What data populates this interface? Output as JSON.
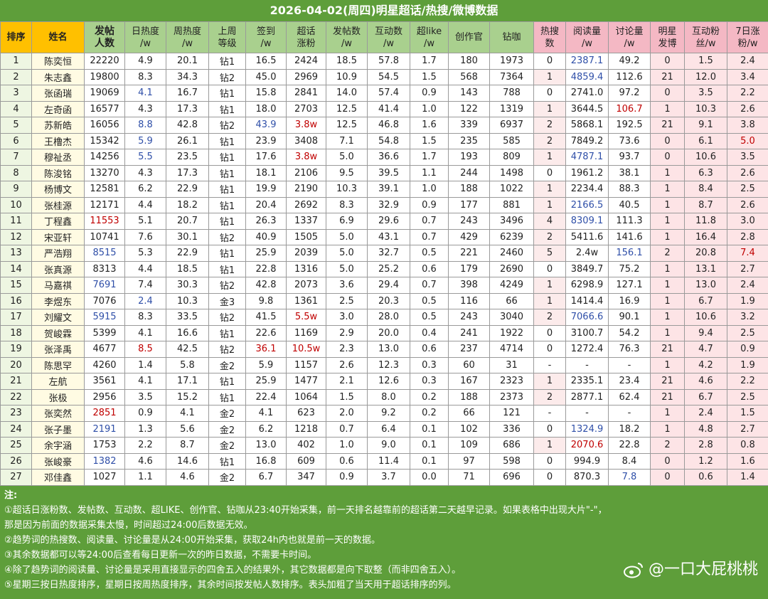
{
  "title": "2026-04-02(周四)明星超话/热搜/微博数据",
  "table": {
    "headers": [
      "排序",
      "姓名",
      "发帖\n人数",
      "日热度\n/w",
      "周热度\n/w",
      "上周\n等级",
      "签到\n/w",
      "超话\n涨粉",
      "发帖数\n/w",
      "互动数\n/w",
      "超like\n/w",
      "创作官",
      "钻咖",
      "热搜\n数",
      "阅读量\n/w",
      "讨论量\n/w",
      "明星\n发博",
      "互动粉\n丝/w",
      "7日涨\n粉/w"
    ],
    "rows": [
      [
        "1",
        "陈奕恒",
        "22220",
        "4.9",
        "20.1",
        "钻1",
        "16.5",
        "2424",
        "18.5",
        "57.8",
        "1.7",
        "180",
        "1973",
        "0",
        "2387.1",
        "49.2",
        "0",
        "1.5",
        "2.4"
      ],
      [
        "2",
        "朱志鑫",
        "19800",
        "8.3",
        "34.3",
        "钻2",
        "45.0",
        "2969",
        "10.9",
        "54.5",
        "1.5",
        "568",
        "7364",
        "1",
        "4859.4",
        "112.6",
        "21",
        "12.0",
        "3.4"
      ],
      [
        "3",
        "张函瑞",
        "19069",
        "4.1",
        "16.7",
        "钻1",
        "15.8",
        "2841",
        "14.0",
        "57.4",
        "0.9",
        "143",
        "788",
        "0",
        "2741.0",
        "97.2",
        "0",
        "3.5",
        "2.2"
      ],
      [
        "4",
        "左奇函",
        "16577",
        "4.3",
        "17.3",
        "钻1",
        "18.0",
        "2703",
        "12.5",
        "41.4",
        "1.0",
        "122",
        "1319",
        "1",
        "3644.5",
        "106.7",
        "1",
        "10.3",
        "2.6"
      ],
      [
        "5",
        "苏新皓",
        "16056",
        "8.8",
        "42.8",
        "钻2",
        "43.9",
        "3.8w",
        "12.5",
        "46.8",
        "1.6",
        "339",
        "6937",
        "2",
        "5868.1",
        "192.5",
        "21",
        "9.1",
        "3.8"
      ],
      [
        "6",
        "王橹杰",
        "15342",
        "5.9",
        "26.1",
        "钻1",
        "23.9",
        "3408",
        "7.1",
        "54.8",
        "1.5",
        "235",
        "585",
        "2",
        "7849.2",
        "73.6",
        "0",
        "6.1",
        "5.0"
      ],
      [
        "7",
        "穆祉丞",
        "14256",
        "5.5",
        "23.5",
        "钻1",
        "17.6",
        "3.8w",
        "5.0",
        "36.6",
        "1.7",
        "193",
        "809",
        "1",
        "4787.1",
        "93.7",
        "0",
        "10.6",
        "3.5"
      ],
      [
        "8",
        "陈浚铭",
        "13270",
        "4.3",
        "17.3",
        "钻1",
        "18.1",
        "2106",
        "9.5",
        "39.5",
        "1.1",
        "244",
        "1498",
        "0",
        "1961.2",
        "38.1",
        "1",
        "6.3",
        "2.6"
      ],
      [
        "9",
        "杨博文",
        "12581",
        "6.2",
        "22.9",
        "钻1",
        "19.9",
        "2190",
        "10.3",
        "39.1",
        "1.0",
        "188",
        "1022",
        "1",
        "2234.4",
        "88.3",
        "1",
        "8.4",
        "2.5"
      ],
      [
        "10",
        "张桂源",
        "12171",
        "4.4",
        "18.2",
        "钻1",
        "20.4",
        "2692",
        "8.3",
        "32.9",
        "0.9",
        "177",
        "881",
        "1",
        "2166.5",
        "40.5",
        "1",
        "8.7",
        "2.6"
      ],
      [
        "11",
        "丁程鑫",
        "11553",
        "5.1",
        "20.7",
        "钻1",
        "26.3",
        "1337",
        "6.9",
        "29.6",
        "0.7",
        "243",
        "3496",
        "4",
        "8309.1",
        "111.3",
        "1",
        "11.8",
        "3.0"
      ],
      [
        "12",
        "宋亚轩",
        "10741",
        "7.6",
        "30.1",
        "钻2",
        "40.9",
        "1505",
        "5.0",
        "43.1",
        "0.7",
        "429",
        "6239",
        "2",
        "5411.6",
        "141.6",
        "1",
        "16.4",
        "2.8"
      ],
      [
        "13",
        "严浩翔",
        "8515",
        "5.3",
        "22.9",
        "钻1",
        "25.9",
        "2039",
        "5.0",
        "32.7",
        "0.5",
        "221",
        "2460",
        "5",
        "2.4w",
        "156.1",
        "2",
        "20.8",
        "7.4"
      ],
      [
        "14",
        "张真源",
        "8313",
        "4.4",
        "18.5",
        "钻1",
        "22.8",
        "1316",
        "5.0",
        "25.2",
        "0.6",
        "179",
        "2690",
        "0",
        "3849.7",
        "75.2",
        "1",
        "13.1",
        "2.7"
      ],
      [
        "15",
        "马嘉祺",
        "7691",
        "7.4",
        "30.3",
        "钻2",
        "42.8",
        "2073",
        "3.6",
        "29.4",
        "0.7",
        "398",
        "4249",
        "1",
        "6298.9",
        "127.1",
        "1",
        "13.0",
        "2.4"
      ],
      [
        "16",
        "李煜东",
        "7076",
        "2.4",
        "10.3",
        "金3",
        "9.8",
        "1361",
        "2.5",
        "20.3",
        "0.5",
        "116",
        "66",
        "1",
        "1414.4",
        "16.9",
        "1",
        "6.7",
        "1.9"
      ],
      [
        "17",
        "刘耀文",
        "5915",
        "8.3",
        "33.5",
        "钻2",
        "41.5",
        "5.5w",
        "3.0",
        "28.0",
        "0.5",
        "243",
        "3040",
        "2",
        "7066.6",
        "90.1",
        "1",
        "10.6",
        "3.2"
      ],
      [
        "18",
        "贺峻霖",
        "5399",
        "4.1",
        "16.6",
        "钻1",
        "22.6",
        "1169",
        "2.9",
        "20.0",
        "0.4",
        "241",
        "1922",
        "0",
        "3100.7",
        "54.2",
        "1",
        "9.4",
        "2.5"
      ],
      [
        "19",
        "张泽禹",
        "4677",
        "8.5",
        "42.5",
        "钻2",
        "36.1",
        "10.5w",
        "2.3",
        "13.0",
        "0.6",
        "237",
        "4714",
        "0",
        "1272.4",
        "76.3",
        "21",
        "4.7",
        "0.9"
      ],
      [
        "20",
        "陈思罕",
        "4260",
        "1.4",
        "5.8",
        "金2",
        "5.9",
        "1157",
        "2.6",
        "12.3",
        "0.3",
        "60",
        "31",
        "-",
        "-",
        "-",
        "1",
        "4.2",
        "1.9"
      ],
      [
        "21",
        "左航",
        "3561",
        "4.1",
        "17.1",
        "钻1",
        "25.9",
        "1477",
        "2.1",
        "12.6",
        "0.3",
        "167",
        "2323",
        "1",
        "2335.1",
        "23.4",
        "21",
        "4.6",
        "2.2"
      ],
      [
        "22",
        "张极",
        "2956",
        "3.5",
        "15.2",
        "钻1",
        "22.4",
        "1064",
        "1.5",
        "8.0",
        "0.2",
        "188",
        "2373",
        "2",
        "2877.1",
        "62.4",
        "21",
        "6.7",
        "2.5"
      ],
      [
        "23",
        "张奕然",
        "2851",
        "0.9",
        "4.1",
        "金2",
        "4.1",
        "623",
        "2.0",
        "9.2",
        "0.2",
        "66",
        "121",
        "-",
        "-",
        "-",
        "1",
        "2.4",
        "1.5"
      ],
      [
        "24",
        "张子墨",
        "2191",
        "1.3",
        "5.6",
        "金2",
        "6.2",
        "1218",
        "0.7",
        "6.4",
        "0.1",
        "102",
        "336",
        "0",
        "1324.9",
        "18.2",
        "1",
        "4.8",
        "2.7"
      ],
      [
        "25",
        "余宇涵",
        "1753",
        "2.2",
        "8.7",
        "金2",
        "13.0",
        "402",
        "1.0",
        "9.0",
        "0.1",
        "109",
        "686",
        "1",
        "2070.6",
        "22.8",
        "2",
        "2.8",
        "0.8"
      ],
      [
        "26",
        "张峻豪",
        "1382",
        "4.6",
        "14.6",
        "钻1",
        "16.8",
        "609",
        "0.6",
        "11.4",
        "0.1",
        "97",
        "598",
        "0",
        "994.9",
        "8.4",
        "0",
        "1.2",
        "1.6"
      ],
      [
        "27",
        "邓佳鑫",
        "1027",
        "1.1",
        "4.6",
        "金2",
        "6.7",
        "347",
        "0.9",
        "3.7",
        "0.0",
        "71",
        "696",
        "0",
        "870.3",
        "7.8",
        "0",
        "0.6",
        "1.4"
      ]
    ]
  },
  "footer": {
    "label": "注:",
    "notes": [
      "①超话日涨粉数、发帖数、互动数、超LIKE、创作官、钻咖从23:40开始采集，前一天排名越靠前的超话第二天越早记录。如果表格中出现大片\"-\"，",
      "那是因为前面的数据采集太慢，时间超过24:00后数据无效。",
      "②趋势词的热搜数、阅读量、讨论量是从24:00开始采集，获取24h内也就是前一天的数据。",
      "③其余数据都可以等24:00后查看每日更新一次的昨日数据，不需要卡时间。",
      "④除了趋势词的阅读量、讨论量是采用直接显示的四舍五入的结果外，其它数据都是向下取整（而非四舍五入）。",
      "⑤星期三按日热度排序，星期日按周热度排序，其余时间按发帖人数排序。表头加粗了当天用于超话排序的列。"
    ],
    "watermark": "@一口大屁桃桃"
  }
}
